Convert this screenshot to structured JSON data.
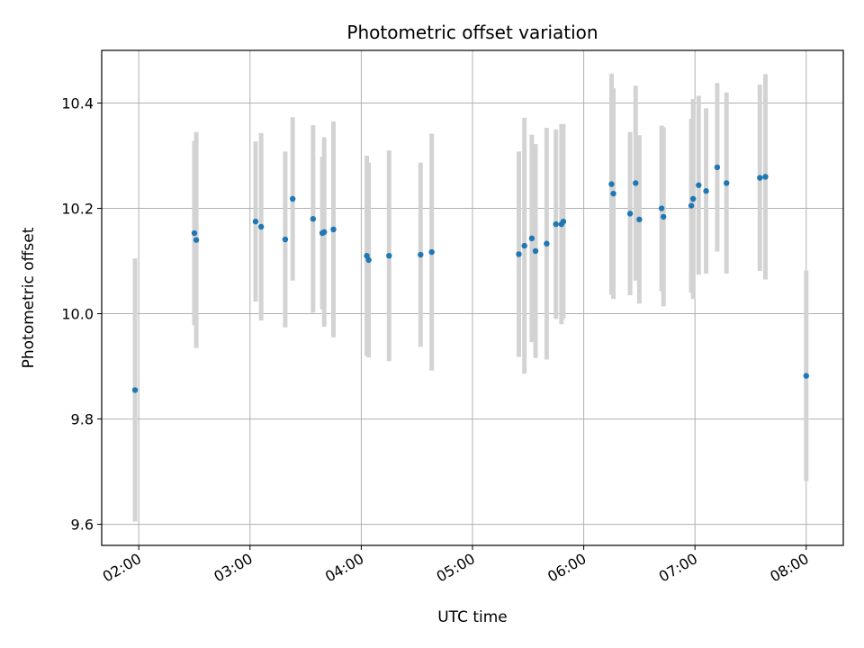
{
  "chart_data": {
    "type": "scatter",
    "title": "Photometric offset variation",
    "xlabel": "UTC time",
    "ylabel": "Photometric offset",
    "x_ticks": [
      "02:00",
      "03:00",
      "04:00",
      "05:00",
      "06:00",
      "07:00",
      "08:00"
    ],
    "y_ticks": [
      "9.6",
      "9.8",
      "10.0",
      "10.2",
      "10.4"
    ],
    "xlim": [
      "01:40",
      "08:20"
    ],
    "ylim": [
      9.56,
      10.5
    ],
    "grid": true,
    "legend": "none",
    "colors": {
      "point": "#1f77b4",
      "errorbar": "#d3d3d3",
      "grid": "#b0b0b0"
    },
    "points": [
      {
        "x": "01:58",
        "y": 9.855,
        "err": 0.25
      },
      {
        "x": "02:30",
        "y": 10.153,
        "err": 0.175
      },
      {
        "x": "02:31",
        "y": 10.14,
        "err": 0.205
      },
      {
        "x": "03:03",
        "y": 10.175,
        "err": 0.152
      },
      {
        "x": "03:06",
        "y": 10.165,
        "err": 0.178
      },
      {
        "x": "03:19",
        "y": 10.141,
        "err": 0.167
      },
      {
        "x": "03:23",
        "y": 10.218,
        "err": 0.155
      },
      {
        "x": "03:34",
        "y": 10.18,
        "err": 0.178
      },
      {
        "x": "03:39",
        "y": 10.153,
        "err": 0.145
      },
      {
        "x": "03:40",
        "y": 10.155,
        "err": 0.18
      },
      {
        "x": "03:45",
        "y": 10.16,
        "err": 0.205
      },
      {
        "x": "04:03",
        "y": 10.11,
        "err": 0.19
      },
      {
        "x": "04:04",
        "y": 10.102,
        "err": 0.185
      },
      {
        "x": "04:15",
        "y": 10.11,
        "err": 0.2
      },
      {
        "x": "04:32",
        "y": 10.112,
        "err": 0.175
      },
      {
        "x": "04:38",
        "y": 10.117,
        "err": 0.225
      },
      {
        "x": "05:25",
        "y": 10.113,
        "err": 0.195
      },
      {
        "x": "05:28",
        "y": 10.129,
        "err": 0.243
      },
      {
        "x": "05:32",
        "y": 10.143,
        "err": 0.197
      },
      {
        "x": "05:34",
        "y": 10.119,
        "err": 0.203
      },
      {
        "x": "05:40",
        "y": 10.133,
        "err": 0.22
      },
      {
        "x": "05:45",
        "y": 10.17,
        "err": 0.18
      },
      {
        "x": "05:48",
        "y": 10.17,
        "err": 0.19
      },
      {
        "x": "05:49",
        "y": 10.175,
        "err": 0.185
      },
      {
        "x": "06:15",
        "y": 10.246,
        "err": 0.21
      },
      {
        "x": "06:16",
        "y": 10.228,
        "err": 0.2
      },
      {
        "x": "06:25",
        "y": 10.19,
        "err": 0.155
      },
      {
        "x": "06:28",
        "y": 10.248,
        "err": 0.185
      },
      {
        "x": "06:30",
        "y": 10.179,
        "err": 0.16
      },
      {
        "x": "06:42",
        "y": 10.2,
        "err": 0.157
      },
      {
        "x": "06:43",
        "y": 10.184,
        "err": 0.17
      },
      {
        "x": "06:58",
        "y": 10.205,
        "err": 0.165
      },
      {
        "x": "06:59",
        "y": 10.218,
        "err": 0.19
      },
      {
        "x": "07:02",
        "y": 10.244,
        "err": 0.17
      },
      {
        "x": "07:06",
        "y": 10.233,
        "err": 0.157
      },
      {
        "x": "07:12",
        "y": 10.278,
        "err": 0.16
      },
      {
        "x": "07:17",
        "y": 10.248,
        "err": 0.172
      },
      {
        "x": "07:35",
        "y": 10.258,
        "err": 0.177
      },
      {
        "x": "07:38",
        "y": 10.26,
        "err": 0.195
      },
      {
        "x": "08:00",
        "y": 9.882,
        "err": 0.2
      }
    ]
  }
}
